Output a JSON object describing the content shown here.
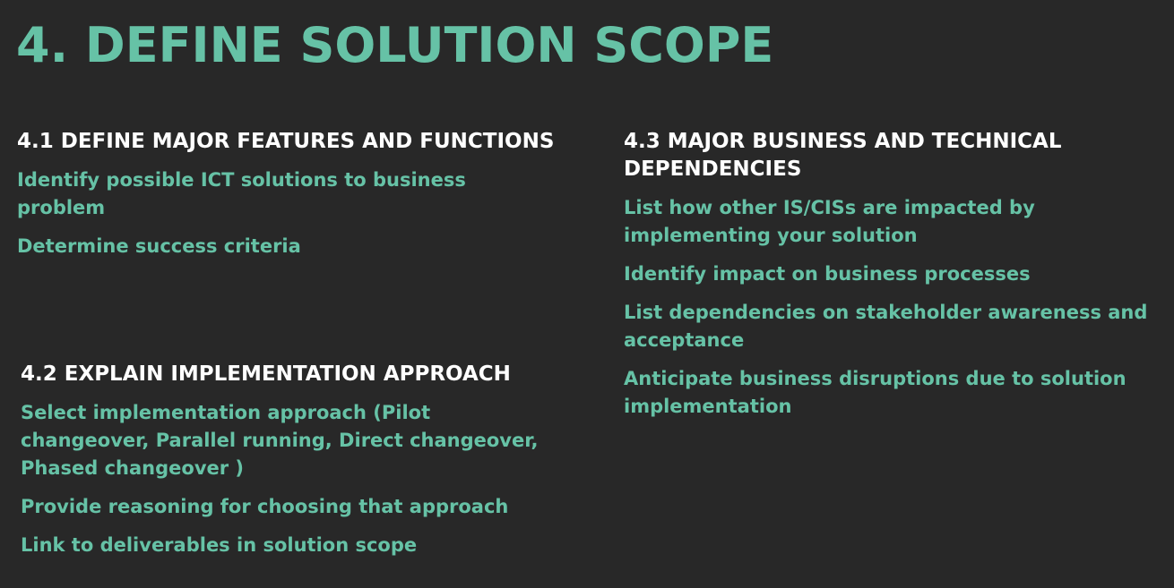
{
  "slide": {
    "title": "4. DEFINE SOLUTION SCOPE",
    "sections": [
      {
        "heading": "4.1 DEFINE MAJOR FEATURES AND FUNCTIONS",
        "items": [
          "Identify possible ICT solutions to business problem",
          "Determine success criteria"
        ]
      },
      {
        "heading": "4.2 EXPLAIN IMPLEMENTATION APPROACH",
        "items": [
          "Select implementation approach (Pilot changeover, Parallel running, Direct changeover, Phased changeover )",
          "Provide reasoning for choosing that approach",
          "Link to deliverables in solution scope"
        ]
      },
      {
        "heading": "4.3 MAJOR BUSINESS AND TECHNICAL DEPENDENCIES",
        "items": [
          "List how other IS/CISs are impacted by implementing your solution",
          "Identify impact on business processes",
          "List dependencies on stakeholder awareness and acceptance",
          "Anticipate business disruptions due to solution implementation"
        ]
      }
    ],
    "colors": {
      "background": "#282828",
      "accent": "#66c2a6",
      "heading": "#ffffff"
    }
  }
}
